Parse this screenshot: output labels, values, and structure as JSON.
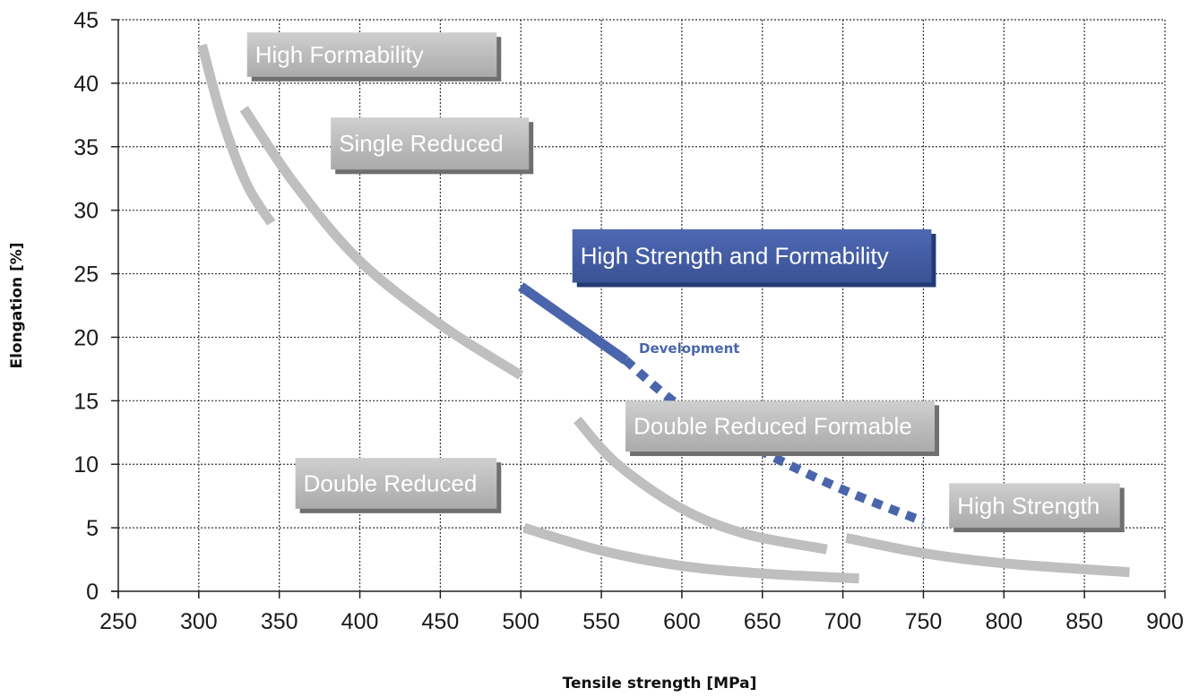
{
  "chart_data": {
    "type": "line",
    "title": "",
    "xlabel": "Tensile strength [MPa]",
    "ylabel": "Elongation [%]",
    "xlim": [
      250,
      900
    ],
    "ylim": [
      0,
      45
    ],
    "x_ticks": [
      250,
      300,
      350,
      400,
      450,
      500,
      550,
      600,
      650,
      700,
      750,
      800,
      850,
      900
    ],
    "y_ticks": [
      0,
      5,
      10,
      15,
      20,
      25,
      30,
      35,
      40,
      45
    ],
    "grid": true,
    "series": [
      {
        "name": "High Formability",
        "style": "solid",
        "color": "#bfbfbf",
        "x": [
          302,
          315,
          330,
          345
        ],
        "y": [
          43,
          37,
          32,
          29
        ]
      },
      {
        "name": "Single Reduced",
        "style": "solid",
        "color": "#bfbfbf",
        "x": [
          328,
          360,
          400,
          450,
          500
        ],
        "y": [
          38,
          32,
          26,
          21,
          17
        ]
      },
      {
        "name": "Double Reduced",
        "style": "solid",
        "color": "#bfbfbf",
        "x": [
          502,
          550,
          600,
          650,
          710
        ],
        "y": [
          5,
          3.2,
          2,
          1.4,
          1
        ]
      },
      {
        "name": "Double Reduced Formable",
        "style": "solid",
        "color": "#bfbfbf",
        "x": [
          535,
          560,
          600,
          640,
          690
        ],
        "y": [
          13.5,
          10,
          6.5,
          4.5,
          3.3
        ]
      },
      {
        "name": "High Strength",
        "style": "solid",
        "color": "#bfbfbf",
        "x": [
          702,
          750,
          800,
          878
        ],
        "y": [
          4.2,
          3,
          2.2,
          1.5
        ]
      },
      {
        "name": "High Strength and Formability",
        "style": "solid",
        "color": "#4a65ab",
        "x": [
          500,
          565
        ],
        "y": [
          24,
          18.2
        ]
      },
      {
        "name": "Development",
        "style": "dashed",
        "color": "#4a65ab",
        "x": [
          565,
          600,
          650,
          700,
          750
        ],
        "y": [
          18.2,
          14.5,
          11,
          8,
          5.5
        ]
      }
    ],
    "labels": [
      {
        "text": "High Formability",
        "x1": 330,
        "y1": 44,
        "x2": 485,
        "y2": 40.5,
        "variant": "gray"
      },
      {
        "text": "Single Reduced",
        "x1": 382,
        "y1": 37.3,
        "x2": 505,
        "y2": 33.2,
        "variant": "gray"
      },
      {
        "text": "High Strength and Formability",
        "x1": 532,
        "y1": 28.5,
        "x2": 755,
        "y2": 24.3,
        "variant": "blue"
      },
      {
        "text": "Double Reduced Formable",
        "x1": 565,
        "y1": 15,
        "x2": 757,
        "y2": 11,
        "variant": "gray"
      },
      {
        "text": "Double Reduced",
        "x1": 360,
        "y1": 10.5,
        "x2": 485,
        "y2": 6.5,
        "variant": "gray"
      },
      {
        "text": "High Strength",
        "x1": 766,
        "y1": 8.5,
        "x2": 872,
        "y2": 5,
        "variant": "gray"
      }
    ],
    "annotations": [
      {
        "text": "Development",
        "x": 570,
        "y": 18.4,
        "color": "#4a65ab"
      }
    ]
  }
}
